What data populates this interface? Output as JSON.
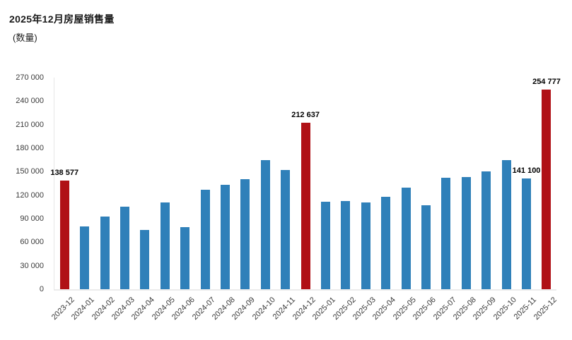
{
  "header": {
    "title": "2025年12月房屋销售量",
    "subtitle": "(数量)"
  },
  "colors": {
    "bar": "#2f80b9",
    "highlight_bar": "#b01116",
    "axis_line": "#e7e7e7",
    "tick_text": "#3a3a3a",
    "value_label_text": "#000000"
  },
  "chart_data": {
    "type": "bar",
    "title": "2025年12月房屋销售量",
    "ylabel": "(数量)",
    "xlabel": "",
    "ylim": [
      0,
      270000
    ],
    "grid": false,
    "legend": "none",
    "yticks": [
      0,
      30000,
      60000,
      90000,
      120000,
      150000,
      180000,
      210000,
      240000,
      270000
    ],
    "ytick_labels": [
      "0",
      "30 000",
      "60 000",
      "90 000",
      "120 000",
      "150 000",
      "180 000",
      "210 000",
      "240 000",
      "270 000"
    ],
    "categories": [
      "2023-12",
      "2024-01",
      "2024-02",
      "2024-03",
      "2024-04",
      "2024-05",
      "2024-06",
      "2024-07",
      "2024-08",
      "2024-09",
      "2024-10",
      "2024-11",
      "2024-12",
      "2025-01",
      "2025-02",
      "2025-03",
      "2025-04",
      "2025-05",
      "2025-06",
      "2025-07",
      "2025-08",
      "2025-09",
      "2025-10",
      "2025-11",
      "2025-12"
    ],
    "values": [
      138577,
      80500,
      93000,
      105000,
      75500,
      110500,
      79000,
      127000,
      133500,
      140500,
      165000,
      152500,
      212637,
      112000,
      112500,
      110500,
      118000,
      130000,
      107500,
      142500,
      143000,
      150500,
      164500,
      141100,
      254777
    ],
    "highlighted_indices": [
      0,
      12,
      24
    ],
    "data_labels": {
      "0": "138 577",
      "12": "212 637",
      "23": "141 100",
      "24": "254 777"
    }
  }
}
